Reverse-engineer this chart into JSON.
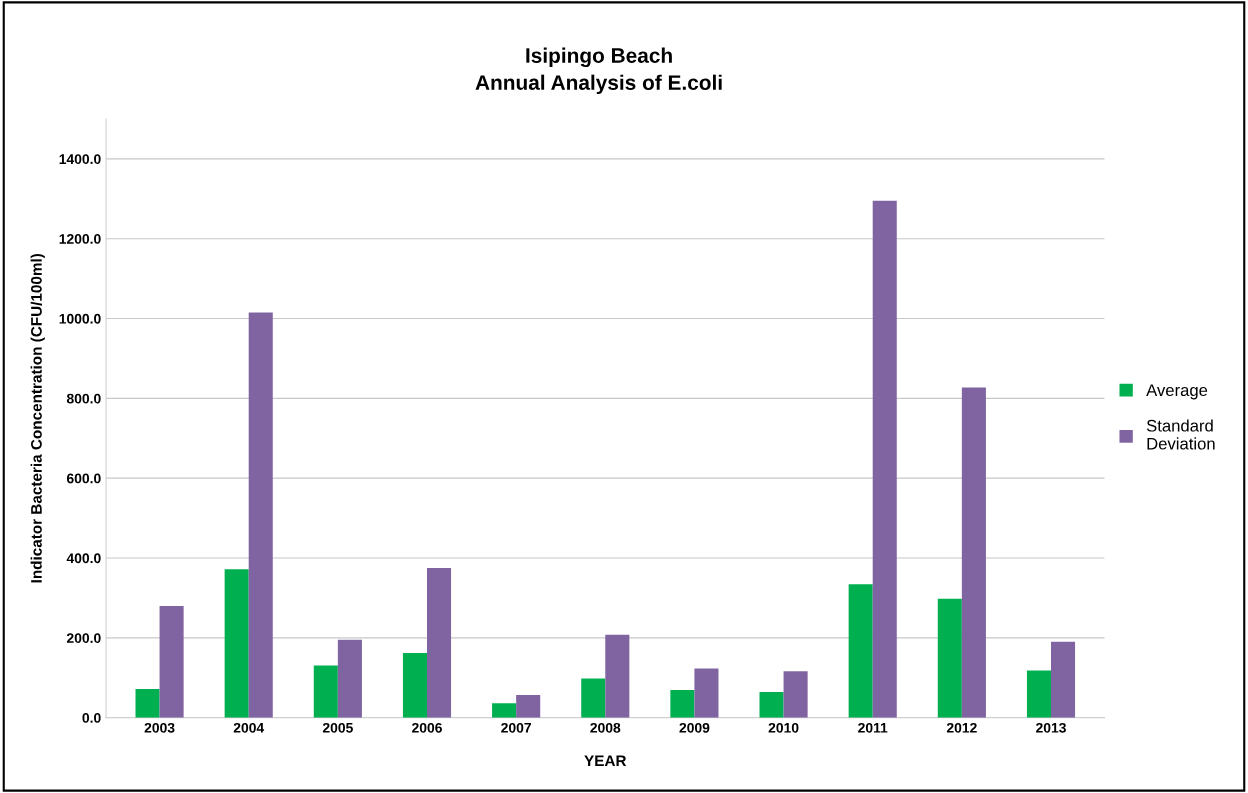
{
  "chart_data": {
    "type": "bar",
    "title": "Isipingo Beach\nAnnual Analysis of E.coli",
    "xlabel": "YEAR",
    "ylabel": "Indicator Bacteria Concentration (CFU/100ml)",
    "categories": [
      "2003",
      "2004",
      "2005",
      "2006",
      "2007",
      "2008",
      "2009",
      "2010",
      "2011",
      "2012",
      "2013"
    ],
    "series": [
      {
        "name": "Average",
        "color": "#00b050",
        "values": [
          72,
          372,
          131,
          162,
          36,
          98,
          69,
          64,
          334,
          298,
          118
        ]
      },
      {
        "name": "Standard Deviation",
        "color": "#8064a2",
        "values": [
          280,
          1015,
          195,
          375,
          57,
          208,
          123,
          116,
          1295,
          827,
          190
        ]
      }
    ],
    "ylim": [
      0,
      1500
    ],
    "yticks": [
      {
        "value": 0,
        "label": "0.0"
      },
      {
        "value": 200,
        "label": "200.0"
      },
      {
        "value": 400,
        "label": "400.0"
      },
      {
        "value": 600,
        "label": "600.0"
      },
      {
        "value": 800,
        "label": "800.0"
      },
      {
        "value": 1000,
        "label": "1000.0"
      },
      {
        "value": 1200,
        "label": "1200.0"
      },
      {
        "value": 1400,
        "label": "1400.0"
      }
    ],
    "grid": "y",
    "legend": "right"
  }
}
